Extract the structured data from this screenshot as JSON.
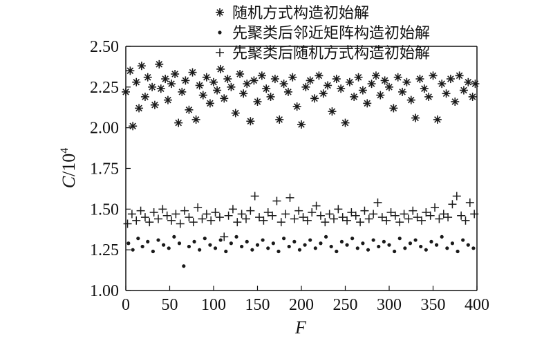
{
  "chart_data": {
    "type": "scatter",
    "xlabel": "F",
    "ylabel_main": "C",
    "ylabel_suffix": "/10",
    "ylabel_exp": "4",
    "xlim": [
      0,
      400
    ],
    "ylim": [
      1.0,
      2.5
    ],
    "xticks": [
      0,
      50,
      100,
      150,
      200,
      250,
      300,
      350,
      400
    ],
    "yticks": [
      "1.00",
      "1.25",
      "1.50",
      "1.75",
      "2.00",
      "2.25",
      "2.50"
    ],
    "grid": false,
    "legend_position": "top-right",
    "series": [
      {
        "name": "随机方式构造初始解",
        "marker": "asterisk",
        "x": [
          0,
          5,
          8,
          12,
          15,
          18,
          22,
          25,
          30,
          33,
          38,
          40,
          45,
          48,
          52,
          56,
          60,
          64,
          68,
          72,
          76,
          80,
          84,
          88,
          92,
          96,
          100,
          104,
          108,
          112,
          116,
          120,
          125,
          130,
          134,
          138,
          142,
          146,
          150,
          155,
          160,
          165,
          170,
          175,
          180,
          185,
          190,
          195,
          200,
          205,
          210,
          215,
          220,
          225,
          230,
          235,
          240,
          245,
          250,
          255,
          260,
          265,
          270,
          275,
          280,
          285,
          290,
          295,
          300,
          305,
          310,
          315,
          320,
          325,
          330,
          335,
          340,
          345,
          350,
          355,
          360,
          365,
          370,
          375,
          380,
          385,
          390,
          395,
          398
        ],
        "y": [
          2.22,
          2.35,
          2.01,
          2.28,
          2.12,
          2.38,
          2.19,
          2.31,
          2.25,
          2.14,
          2.39,
          2.24,
          2.3,
          2.17,
          2.27,
          2.33,
          2.03,
          2.22,
          2.29,
          2.11,
          2.34,
          2.05,
          2.26,
          2.2,
          2.31,
          2.15,
          2.28,
          2.23,
          2.36,
          2.18,
          2.3,
          2.25,
          2.09,
          2.33,
          2.21,
          2.27,
          2.04,
          2.29,
          2.16,
          2.32,
          2.24,
          2.19,
          2.3,
          2.05,
          2.27,
          2.22,
          2.31,
          2.13,
          2.02,
          2.25,
          2.29,
          2.18,
          2.32,
          2.21,
          2.26,
          2.1,
          2.3,
          2.24,
          2.03,
          2.28,
          2.19,
          2.31,
          2.23,
          2.15,
          2.27,
          2.32,
          2.2,
          2.29,
          2.25,
          2.12,
          2.31,
          2.22,
          2.28,
          2.17,
          2.06,
          2.3,
          2.24,
          2.19,
          2.32,
          2.05,
          2.27,
          2.21,
          2.3,
          2.16,
          2.32,
          2.23,
          2.28,
          2.19,
          2.27
        ]
      },
      {
        "name": "先聚类后邻近矩阵构造初始解",
        "marker": "dot",
        "x": [
          3,
          8,
          14,
          19,
          25,
          31,
          37,
          43,
          49,
          55,
          61,
          66,
          72,
          78,
          84,
          90,
          96,
          102,
          108,
          114,
          120,
          126,
          132,
          138,
          144,
          150,
          156,
          162,
          168,
          174,
          180,
          186,
          192,
          198,
          204,
          210,
          216,
          222,
          228,
          234,
          240,
          246,
          252,
          258,
          264,
          270,
          276,
          282,
          288,
          294,
          300,
          306,
          312,
          318,
          324,
          330,
          336,
          342,
          348,
          354,
          360,
          366,
          372,
          378,
          384,
          390,
          396
        ],
        "y": [
          1.29,
          1.25,
          1.32,
          1.27,
          1.3,
          1.24,
          1.31,
          1.28,
          1.26,
          1.33,
          1.29,
          1.15,
          1.27,
          1.3,
          1.25,
          1.32,
          1.28,
          1.26,
          1.31,
          1.24,
          1.29,
          1.33,
          1.27,
          1.3,
          1.25,
          1.28,
          1.31,
          1.26,
          1.29,
          1.24,
          1.32,
          1.27,
          1.3,
          1.25,
          1.28,
          1.31,
          1.26,
          1.29,
          1.33,
          1.27,
          1.24,
          1.3,
          1.28,
          1.32,
          1.26,
          1.29,
          1.25,
          1.31,
          1.27,
          1.3,
          1.28,
          1.24,
          1.32,
          1.26,
          1.29,
          1.31,
          1.27,
          1.25,
          1.3,
          1.28,
          1.33,
          1.26,
          1.29,
          1.24,
          1.31,
          1.28,
          1.26
        ]
      },
      {
        "name": "先聚类后随机方式构造初始解",
        "marker": "plus",
        "x": [
          2,
          7,
          12,
          17,
          22,
          27,
          32,
          37,
          42,
          47,
          52,
          57,
          62,
          67,
          72,
          77,
          82,
          87,
          92,
          97,
          102,
          107,
          112,
          117,
          122,
          127,
          132,
          137,
          142,
          147,
          152,
          157,
          162,
          167,
          172,
          177,
          182,
          187,
          192,
          197,
          202,
          207,
          212,
          217,
          222,
          227,
          232,
          237,
          242,
          247,
          252,
          257,
          262,
          267,
          272,
          277,
          282,
          287,
          292,
          297,
          302,
          307,
          312,
          317,
          322,
          327,
          332,
          337,
          342,
          347,
          352,
          357,
          362,
          367,
          372,
          377,
          382,
          387,
          392,
          397
        ],
        "y": [
          1.41,
          1.47,
          1.43,
          1.49,
          1.45,
          1.42,
          1.48,
          1.44,
          1.5,
          1.46,
          1.43,
          1.47,
          1.41,
          1.49,
          1.45,
          1.42,
          1.51,
          1.44,
          1.47,
          1.43,
          1.48,
          1.45,
          1.33,
          1.46,
          1.5,
          1.42,
          1.47,
          1.44,
          1.49,
          1.58,
          1.45,
          1.43,
          1.48,
          1.46,
          1.55,
          1.42,
          1.47,
          1.57,
          1.44,
          1.49,
          1.45,
          1.43,
          1.48,
          1.52,
          1.46,
          1.42,
          1.47,
          1.44,
          1.5,
          1.45,
          1.43,
          1.48,
          1.46,
          1.42,
          1.49,
          1.44,
          1.47,
          1.54,
          1.45,
          1.43,
          1.48,
          1.46,
          1.42,
          1.47,
          1.44,
          1.49,
          1.45,
          1.43,
          1.48,
          1.46,
          1.51,
          1.44,
          1.47,
          1.45,
          1.53,
          1.58,
          1.46,
          1.43,
          1.54,
          1.47
        ]
      }
    ]
  }
}
